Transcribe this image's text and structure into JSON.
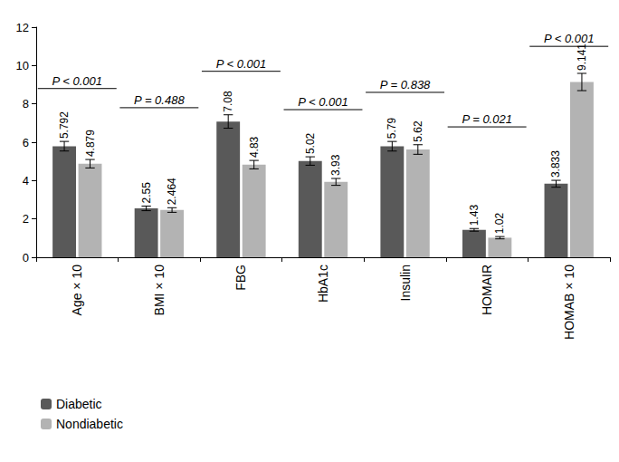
{
  "chart_data": {
    "type": "bar",
    "categories": [
      "Age × 10",
      "BMI × 10",
      "FBG",
      "HbA1c",
      "Insulin",
      "HOMAIR",
      "HOMAB × 10"
    ],
    "series": [
      {
        "name": "Diabetic",
        "color": "#595959",
        "values": [
          5.792,
          2.55,
          7.08,
          5.02,
          5.79,
          1.43,
          3.833
        ],
        "errors": [
          0.25,
          0.12,
          0.35,
          0.22,
          0.25,
          0.07,
          0.18
        ]
      },
      {
        "name": "Nondiabetic",
        "color": "#b3b3b3",
        "values": [
          4.879,
          2.464,
          4.83,
          3.93,
          5.62,
          1.02,
          9.141
        ],
        "errors": [
          0.22,
          0.12,
          0.22,
          0.18,
          0.25,
          0.06,
          0.45
        ]
      }
    ],
    "annotations": [
      {
        "category": "Age × 10",
        "text": "P < 0.001",
        "y": 8.8
      },
      {
        "category": "BMI × 10",
        "text": "P = 0.488",
        "y": 7.8
      },
      {
        "category": "FBG",
        "text": "P < 0.001",
        "y": 9.7
      },
      {
        "category": "HbA1c",
        "text": "P < 0.001",
        "y": 7.7
      },
      {
        "category": "Insulin",
        "text": "P = 0.838",
        "y": 8.6
      },
      {
        "category": "HOMAIR",
        "text": "P = 0.021",
        "y": 6.8
      },
      {
        "category": "HOMAB × 10",
        "text": "P < 0.001",
        "y": 11.0
      }
    ],
    "ylim": [
      0,
      12
    ],
    "yticks": [
      0,
      2,
      4,
      6,
      8,
      10,
      12
    ],
    "grid": false,
    "data_labels": true,
    "legend": "bottom-left"
  }
}
